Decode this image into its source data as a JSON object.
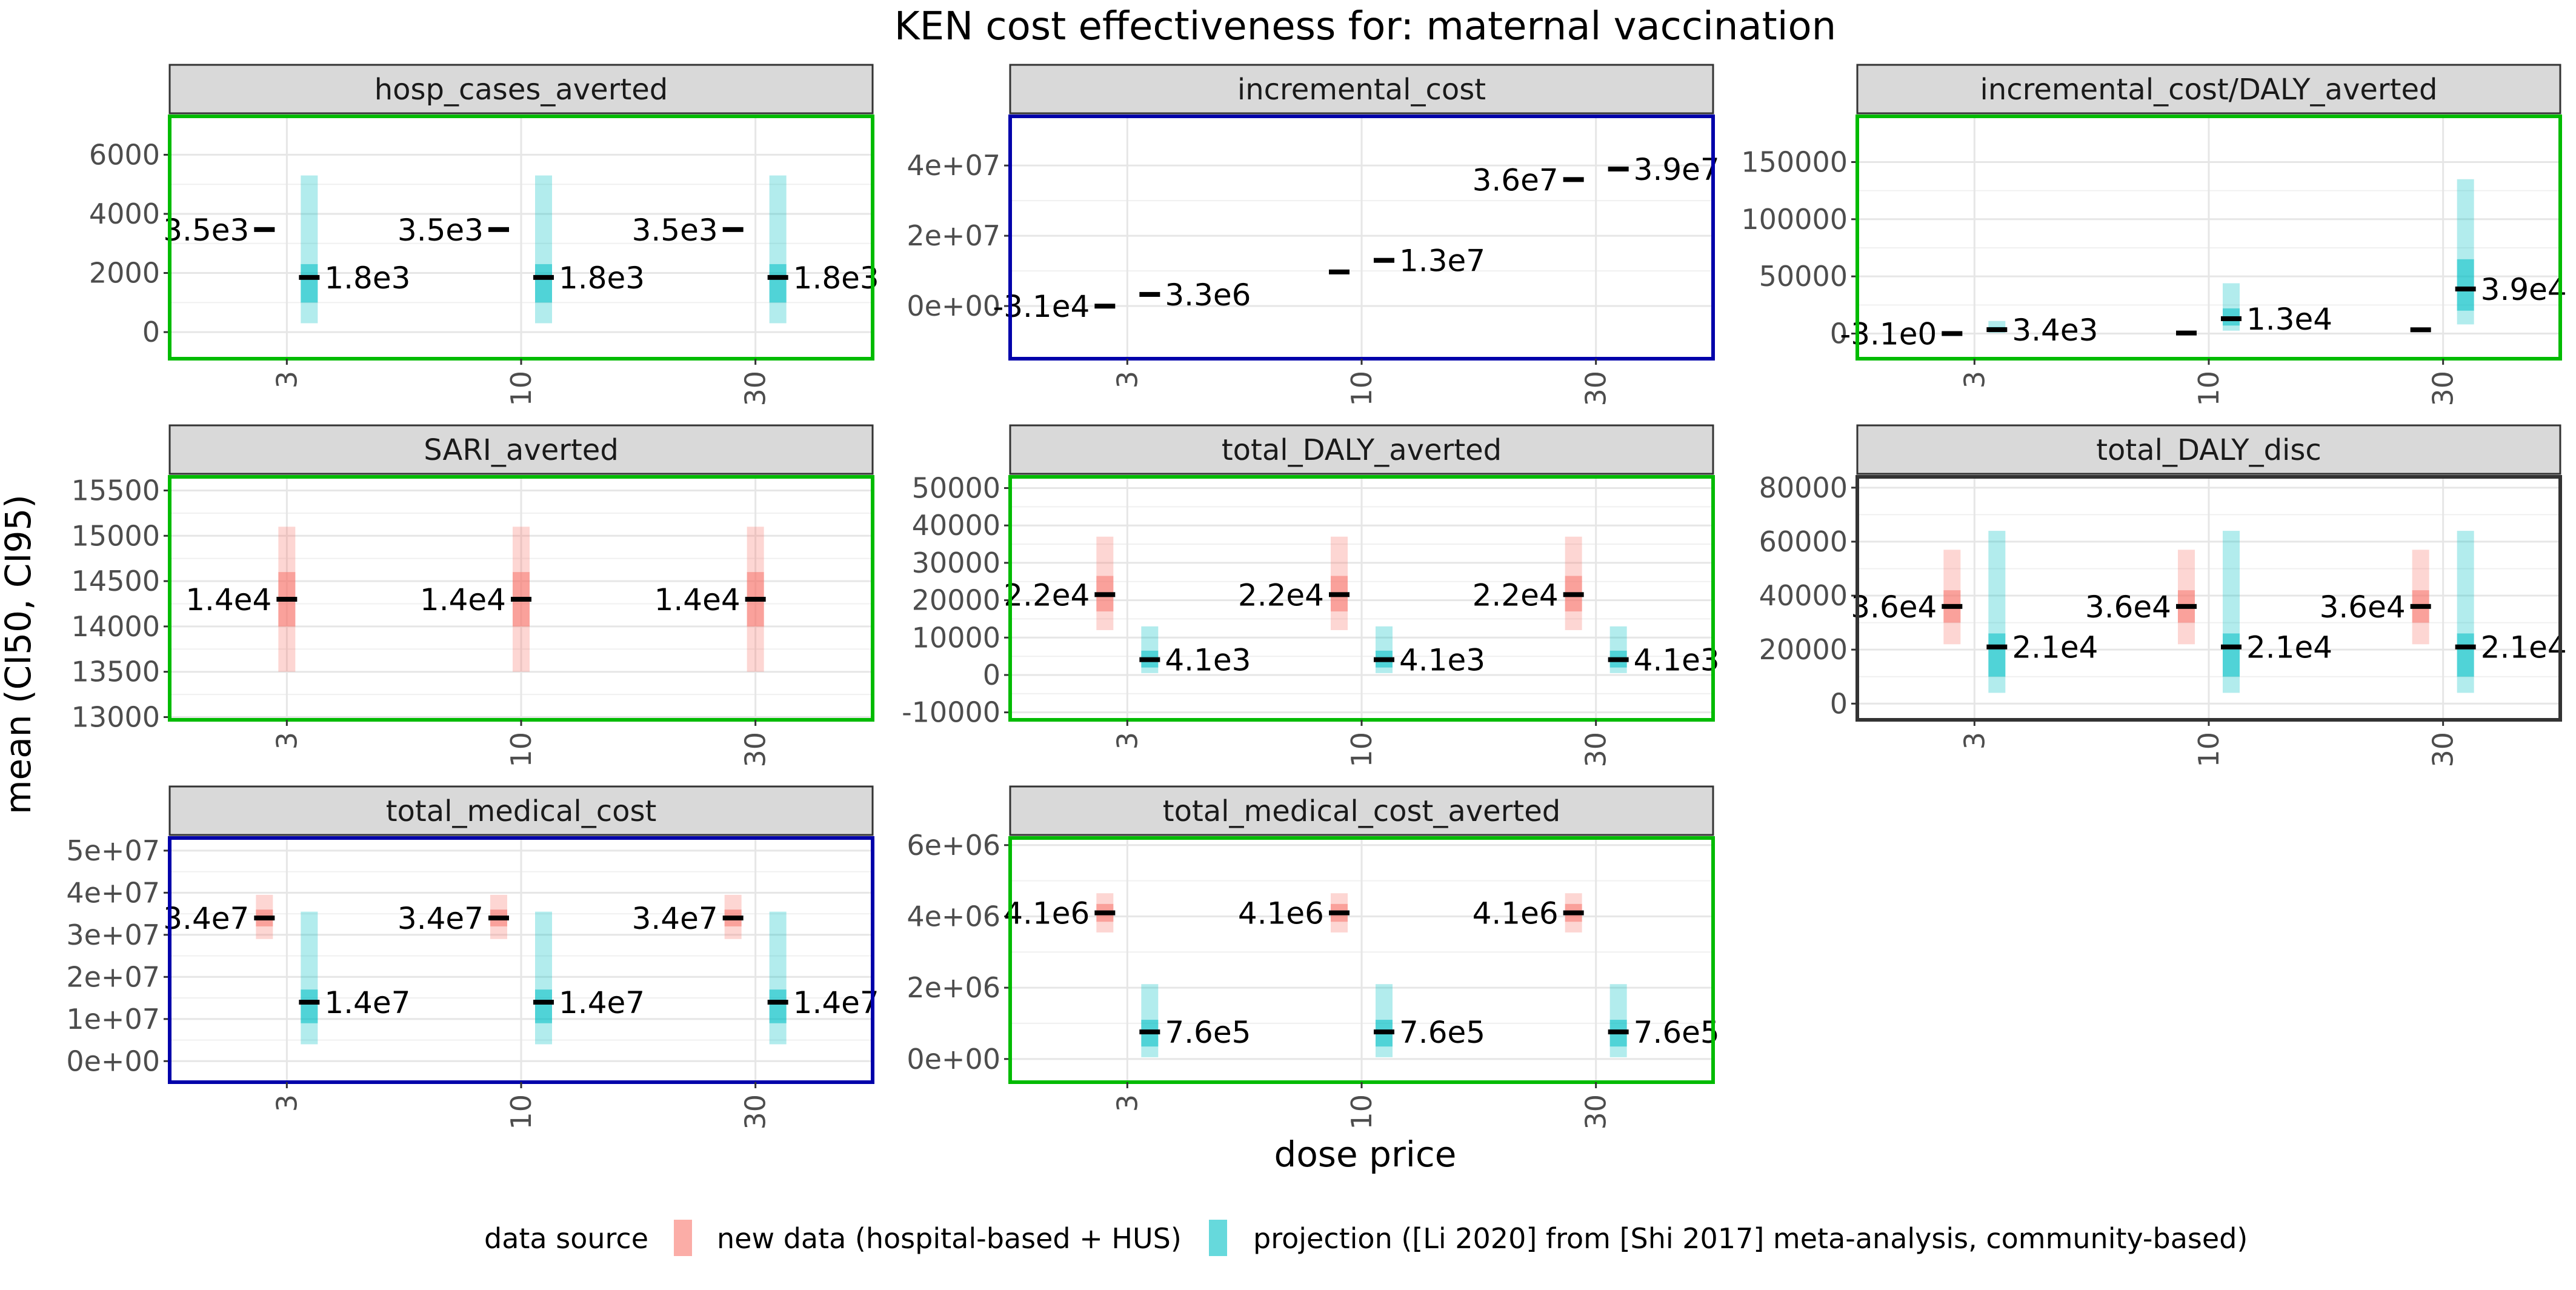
{
  "chart_data": {
    "type": "faceted-interval",
    "title": "KEN cost effectiveness for: maternal vaccination",
    "xlabel": "dose price",
    "ylabel": "mean (CI50, CI95)",
    "categories": [
      "3",
      "10",
      "30"
    ],
    "legend": {
      "title": "data source",
      "position": "bottom",
      "entries": [
        {
          "label": "new data (hospital-based + HUS)",
          "color": "#F8766D"
        },
        {
          "label": "projection ([Li 2020] from [Shi 2017] meta-analysis, community-based)",
          "color": "#00BFC4"
        }
      ]
    },
    "grid": true,
    "panels": [
      {
        "name": "hosp_cases_averted",
        "border_color": "#00BB00",
        "ylim": [
          -900,
          7300
        ],
        "yticks": [
          0,
          2000,
          4000,
          6000
        ],
        "ytick_labels": [
          "0",
          "2000",
          "4000",
          "6000"
        ],
        "series": [
          {
            "source": "new",
            "points": [
              {
                "x": "3",
                "mean": 3470,
                "ci50": [
                  3440,
                  3500
                ],
                "ci95": [
                  3410,
                  3530
                ],
                "label": "3.5e3"
              },
              {
                "x": "10",
                "mean": 3470,
                "ci50": [
                  3440,
                  3500
                ],
                "ci95": [
                  3410,
                  3530
                ],
                "label": "3.5e3"
              },
              {
                "x": "30",
                "mean": 3470,
                "ci50": [
                  3440,
                  3500
                ],
                "ci95": [
                  3410,
                  3530
                ],
                "label": "3.5e3"
              }
            ]
          },
          {
            "source": "projection",
            "points": [
              {
                "x": "3",
                "mean": 1850,
                "ci50": [
                  1000,
                  2300
                ],
                "ci95": [
                  300,
                  5300
                ],
                "label": "1.8e3"
              },
              {
                "x": "10",
                "mean": 1850,
                "ci50": [
                  1000,
                  2300
                ],
                "ci95": [
                  300,
                  5300
                ],
                "label": "1.8e3"
              },
              {
                "x": "30",
                "mean": 1850,
                "ci50": [
                  1000,
                  2300
                ],
                "ci95": [
                  300,
                  5300
                ],
                "label": "1.8e3"
              }
            ]
          }
        ]
      },
      {
        "name": "incremental_cost",
        "border_color": "#0000AA",
        "ylim": [
          -15000000,
          54000000
        ],
        "yticks": [
          0,
          20000000,
          40000000
        ],
        "ytick_labels": [
          "0e+00",
          "2e+07",
          "4e+07"
        ],
        "series": [
          {
            "source": "new",
            "points": [
              {
                "x": "3",
                "mean": -31000,
                "ci50": [
                  -31000,
                  -31000
                ],
                "ci95": [
                  -31000,
                  -31000
                ],
                "label": "-3.1e4"
              },
              {
                "x": "10",
                "mean": 9700000,
                "ci50": [
                  9700000,
                  9700000
                ],
                "ci95": [
                  9700000,
                  9700000
                ],
                "label": ""
              },
              {
                "x": "30",
                "mean": 36000000,
                "ci50": [
                  36000000,
                  36000000
                ],
                "ci95": [
                  36000000,
                  36000000
                ],
                "label": "3.6e7"
              }
            ]
          },
          {
            "source": "projection",
            "points": [
              {
                "x": "3",
                "mean": 3300000,
                "ci50": [
                  3300000,
                  3300000
                ],
                "ci95": [
                  3300000,
                  3300000
                ],
                "label": "3.3e6"
              },
              {
                "x": "10",
                "mean": 13000000,
                "ci50": [
                  13000000,
                  13000000
                ],
                "ci95": [
                  13000000,
                  13000000
                ],
                "label": "1.3e7"
              },
              {
                "x": "30",
                "mean": 39000000,
                "ci50": [
                  39000000,
                  39000000
                ],
                "ci95": [
                  39000000,
                  39000000
                ],
                "label": "3.9e7"
              }
            ]
          }
        ]
      },
      {
        "name": "incremental_cost/DALY_averted",
        "border_color": "#00BB00",
        "ylim": [
          -22000,
          190000
        ],
        "yticks": [
          0,
          50000,
          100000,
          150000
        ],
        "ytick_labels": [
          "0",
          "50000",
          "100000",
          "150000"
        ],
        "series": [
          {
            "source": "new",
            "points": [
              {
                "x": "3",
                "mean": -3.1,
                "ci50": [
                  -3.1,
                  -3.1
                ],
                "ci95": [
                  -3.1,
                  -3.1
                ],
                "label": "-3.1e0"
              },
              {
                "x": "10",
                "mean": 460,
                "ci50": [
                  460,
                  460
                ],
                "ci95": [
                  460,
                  460
                ],
                "label": ""
              },
              {
                "x": "30",
                "mean": 3300,
                "ci50": [
                  3000,
                  3600
                ],
                "ci95": [
                  2700,
                  3900
                ],
                "label": ""
              }
            ]
          },
          {
            "source": "projection",
            "points": [
              {
                "x": "3",
                "mean": 3400,
                "ci50": [
                  1800,
                  5800
                ],
                "ci95": [
                  600,
                  11000
                ],
                "label": "3.4e3"
              },
              {
                "x": "10",
                "mean": 13000,
                "ci50": [
                  7000,
                  22000
                ],
                "ci95": [
                  2500,
                  44000
                ],
                "label": "1.3e4"
              },
              {
                "x": "30",
                "mean": 39000,
                "ci50": [
                  20000,
                  65000
                ],
                "ci95": [
                  8000,
                  135000
                ],
                "label": "3.9e4"
              }
            ]
          }
        ]
      },
      {
        "name": "SARI_averted",
        "border_color": "#00BB00",
        "ylim": [
          12970,
          15650
        ],
        "yticks": [
          13000,
          13500,
          14000,
          14500,
          15000,
          15500
        ],
        "ytick_labels": [
          "13000",
          "13500",
          "14000",
          "14500",
          "15000",
          "15500"
        ],
        "series": [
          {
            "source": "new",
            "points": [
              {
                "x": "3",
                "mean": 14300,
                "ci50": [
                  14000,
                  14600
                ],
                "ci95": [
                  13500,
                  15100
                ],
                "label": "1.4e4"
              },
              {
                "x": "10",
                "mean": 14300,
                "ci50": [
                  14000,
                  14600
                ],
                "ci95": [
                  13500,
                  15100
                ],
                "label": "1.4e4"
              },
              {
                "x": "30",
                "mean": 14300,
                "ci50": [
                  14000,
                  14600
                ],
                "ci95": [
                  13500,
                  15100
                ],
                "label": "1.4e4"
              }
            ]
          }
        ]
      },
      {
        "name": "total_DALY_averted",
        "border_color": "#00BB00",
        "ylim": [
          -12000,
          53000
        ],
        "yticks": [
          -10000,
          0,
          10000,
          20000,
          30000,
          40000,
          50000
        ],
        "ytick_labels": [
          "-10000",
          "0",
          "10000",
          "20000",
          "30000",
          "40000",
          "50000"
        ],
        "series": [
          {
            "source": "new",
            "points": [
              {
                "x": "3",
                "mean": 21500,
                "ci50": [
                  17000,
                  26500
                ],
                "ci95": [
                  12000,
                  37000
                ],
                "label": "2.2e4"
              },
              {
                "x": "10",
                "mean": 21500,
                "ci50": [
                  17000,
                  26500
                ],
                "ci95": [
                  12000,
                  37000
                ],
                "label": "2.2e4"
              },
              {
                "x": "30",
                "mean": 21500,
                "ci50": [
                  17000,
                  26500
                ],
                "ci95": [
                  12000,
                  37000
                ],
                "label": "2.2e4"
              }
            ]
          },
          {
            "source": "projection",
            "points": [
              {
                "x": "3",
                "mean": 4100,
                "ci50": [
                  2000,
                  6500
                ],
                "ci95": [
                  500,
                  13000
                ],
                "label": "4.1e3"
              },
              {
                "x": "10",
                "mean": 4100,
                "ci50": [
                  2000,
                  6500
                ],
                "ci95": [
                  500,
                  13000
                ],
                "label": "4.1e3"
              },
              {
                "x": "30",
                "mean": 4100,
                "ci50": [
                  2000,
                  6500
                ],
                "ci95": [
                  500,
                  13000
                ],
                "label": "4.1e3"
              }
            ]
          }
        ]
      },
      {
        "name": "total_DALY_disc",
        "border_color": "#333333",
        "ylim": [
          -6000,
          84000
        ],
        "yticks": [
          0,
          20000,
          40000,
          60000,
          80000
        ],
        "ytick_labels": [
          "0",
          "20000",
          "40000",
          "60000",
          "80000"
        ],
        "series": [
          {
            "source": "new",
            "points": [
              {
                "x": "3",
                "mean": 36000,
                "ci50": [
                  30000,
                  42000
                ],
                "ci95": [
                  22000,
                  57000
                ],
                "label": "3.6e4"
              },
              {
                "x": "10",
                "mean": 36000,
                "ci50": [
                  30000,
                  42000
                ],
                "ci95": [
                  22000,
                  57000
                ],
                "label": "3.6e4"
              },
              {
                "x": "30",
                "mean": 36000,
                "ci50": [
                  30000,
                  42000
                ],
                "ci95": [
                  22000,
                  57000
                ],
                "label": "3.6e4"
              }
            ]
          },
          {
            "source": "projection",
            "points": [
              {
                "x": "3",
                "mean": 21000,
                "ci50": [
                  10000,
                  26000
                ],
                "ci95": [
                  4000,
                  64000
                ],
                "label": "2.1e4"
              },
              {
                "x": "10",
                "mean": 21000,
                "ci50": [
                  10000,
                  26000
                ],
                "ci95": [
                  4000,
                  64000
                ],
                "label": "2.1e4"
              },
              {
                "x": "30",
                "mean": 21000,
                "ci50": [
                  10000,
                  26000
                ],
                "ci95": [
                  4000,
                  64000
                ],
                "label": "2.1e4"
              }
            ]
          }
        ]
      },
      {
        "name": "total_medical_cost",
        "border_color": "#0000AA",
        "ylim": [
          -5000000,
          53000000
        ],
        "yticks": [
          0,
          10000000,
          20000000,
          30000000,
          40000000,
          50000000
        ],
        "ytick_labels": [
          "0e+00",
          "1e+07",
          "2e+07",
          "3e+07",
          "4e+07",
          "5e+07"
        ],
        "series": [
          {
            "source": "new",
            "points": [
              {
                "x": "3",
                "mean": 34000000,
                "ci50": [
                  32000000,
                  36000000
                ],
                "ci95": [
                  29000000,
                  39500000
                ],
                "label": "3.4e7"
              },
              {
                "x": "10",
                "mean": 34000000,
                "ci50": [
                  32000000,
                  36000000
                ],
                "ci95": [
                  29000000,
                  39500000
                ],
                "label": "3.4e7"
              },
              {
                "x": "30",
                "mean": 34000000,
                "ci50": [
                  32000000,
                  36000000
                ],
                "ci95": [
                  29000000,
                  39500000
                ],
                "label": "3.4e7"
              }
            ]
          },
          {
            "source": "projection",
            "points": [
              {
                "x": "3",
                "mean": 14000000,
                "ci50": [
                  9000000,
                  17000000
                ],
                "ci95": [
                  4000000,
                  35500000
                ],
                "label": "1.4e7"
              },
              {
                "x": "10",
                "mean": 14000000,
                "ci50": [
                  9000000,
                  17000000
                ],
                "ci95": [
                  4000000,
                  35500000
                ],
                "label": "1.4e7"
              },
              {
                "x": "30",
                "mean": 14000000,
                "ci50": [
                  9000000,
                  17000000
                ],
                "ci95": [
                  4000000,
                  35500000
                ],
                "label": "1.4e7"
              }
            ]
          }
        ]
      },
      {
        "name": "total_medical_cost_averted",
        "border_color": "#00BB00",
        "ylim": [
          -650000,
          6200000
        ],
        "yticks": [
          0,
          2000000,
          4000000,
          6000000
        ],
        "ytick_labels": [
          "0e+00",
          "2e+06",
          "4e+06",
          "6e+06"
        ],
        "series": [
          {
            "source": "new",
            "points": [
              {
                "x": "3",
                "mean": 4100000,
                "ci50": [
                  3850000,
                  4350000
                ],
                "ci95": [
                  3550000,
                  4650000
                ],
                "label": "4.1e6"
              },
              {
                "x": "10",
                "mean": 4100000,
                "ci50": [
                  3850000,
                  4350000
                ],
                "ci95": [
                  3550000,
                  4650000
                ],
                "label": "4.1e6"
              },
              {
                "x": "30",
                "mean": 4100000,
                "ci50": [
                  3850000,
                  4350000
                ],
                "ci95": [
                  3550000,
                  4650000
                ],
                "label": "4.1e6"
              }
            ]
          },
          {
            "source": "projection",
            "points": [
              {
                "x": "3",
                "mean": 760000,
                "ci50": [
                  350000,
                  1100000
                ],
                "ci95": [
                  50000,
                  2100000
                ],
                "label": "7.6e5"
              },
              {
                "x": "10",
                "mean": 760000,
                "ci50": [
                  350000,
                  1100000
                ],
                "ci95": [
                  50000,
                  2100000
                ],
                "label": "7.6e5"
              },
              {
                "x": "30",
                "mean": 760000,
                "ci50": [
                  350000,
                  1100000
                ],
                "ci95": [
                  50000,
                  2100000
                ],
                "label": "7.6e5"
              }
            ]
          }
        ]
      }
    ]
  }
}
